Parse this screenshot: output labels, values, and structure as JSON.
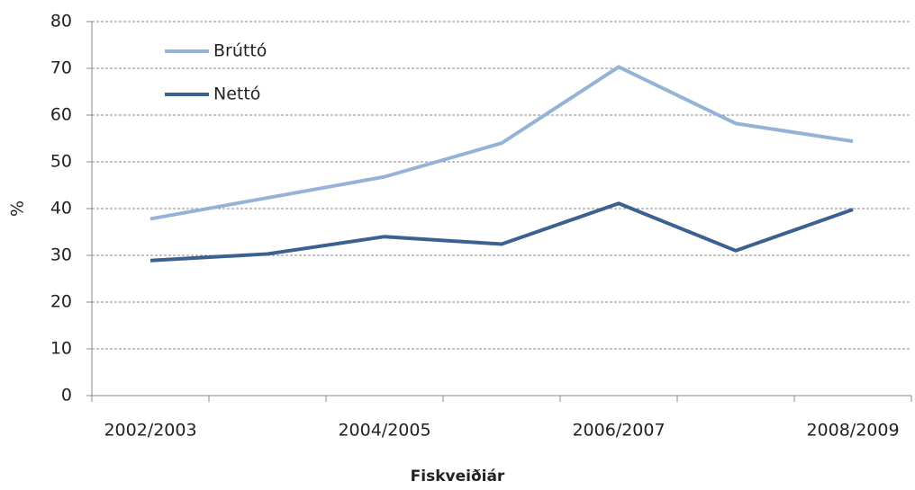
{
  "chart_data": {
    "type": "line",
    "x_label": "Fiskveiðiár",
    "y_label": "%",
    "categories": [
      "2002/2003",
      null,
      "2004/2005",
      null,
      "2006/2007",
      null,
      "2008/2009"
    ],
    "series": [
      {
        "name": "Brúttó",
        "color": "#95b3d7",
        "values": [
          37.8,
          42.3,
          46.8,
          54.0,
          70.3,
          58.2,
          54.4
        ]
      },
      {
        "name": "Nettó",
        "color": "#3a6190",
        "values": [
          28.9,
          30.3,
          34.0,
          32.4,
          41.1,
          31.0,
          39.8
        ]
      }
    ],
    "ylim": [
      0,
      80
    ],
    "yticks": [
      0,
      10,
      20,
      30,
      40,
      50,
      60,
      70,
      80
    ],
    "grid": true,
    "legend": "top-left"
  }
}
